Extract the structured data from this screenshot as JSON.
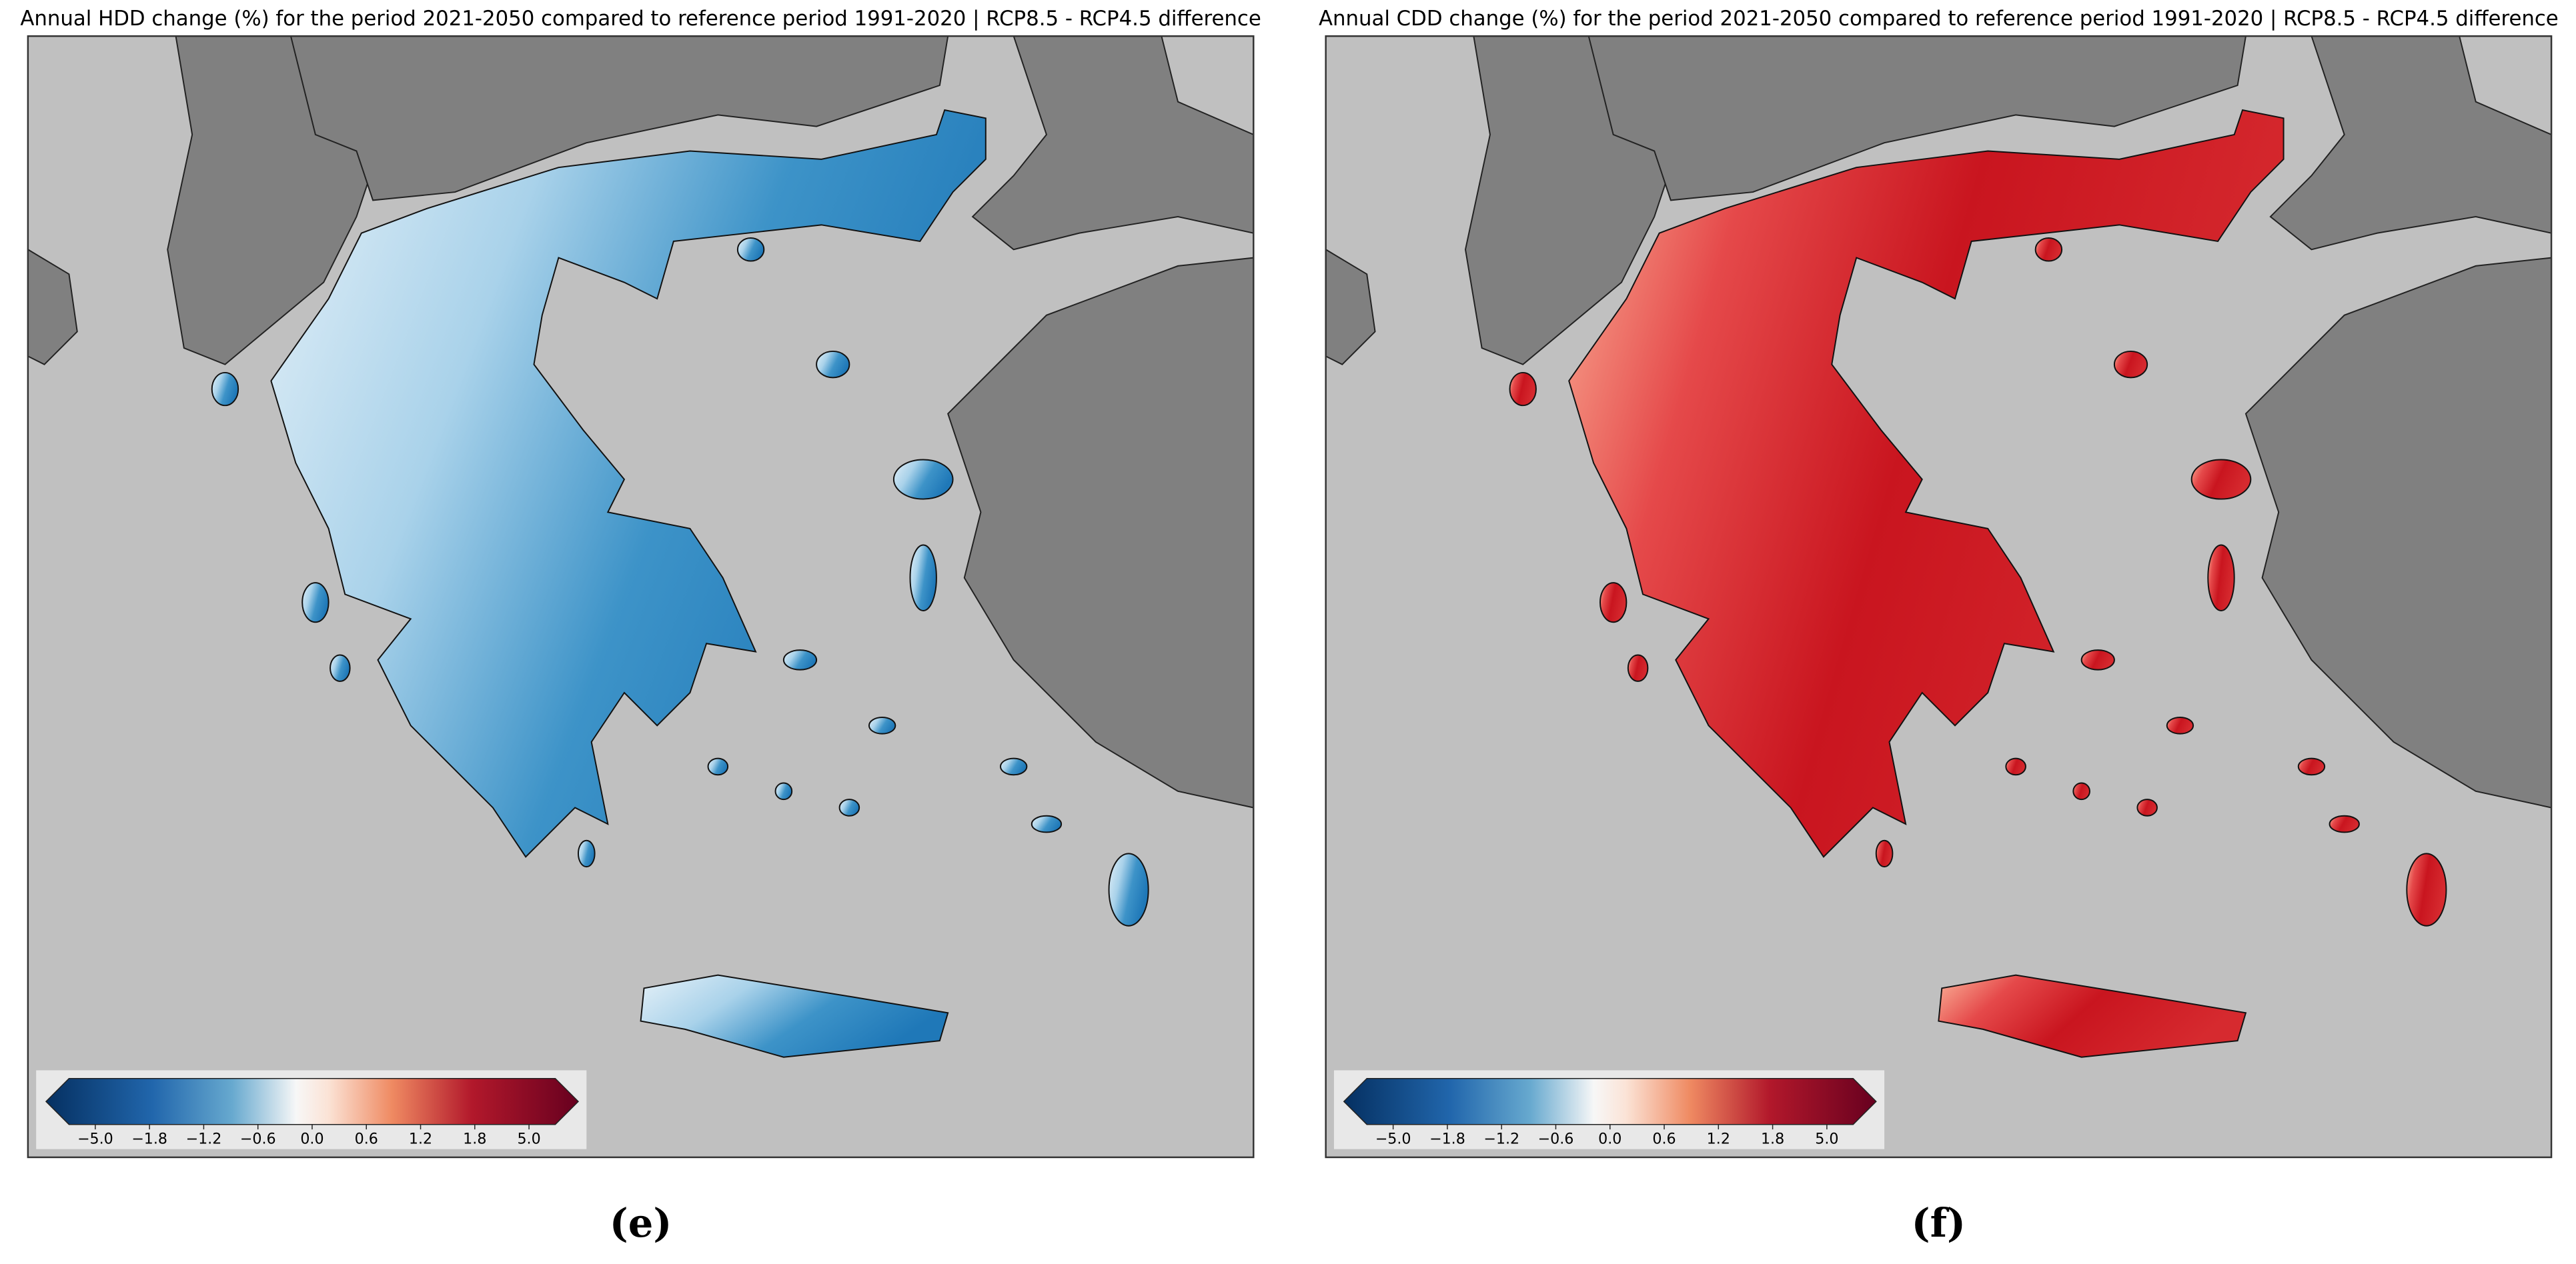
{
  "panels": [
    {
      "title": "Annual HDD change (%) for the period 2021-2050 compared to reference period 1991-2020 | RCP8.5 - RCP4.5 difference",
      "colorbar_ticks": [
        "−5.0",
        "−1.8",
        "−1.2",
        "−0.6",
        "0.0",
        "0.6",
        "1.2",
        "1.8",
        "5.0"
      ],
      "label": "(e)"
    },
    {
      "title": "Annual CDD change (%) for the period 2021-2050 compared to reference period 1991-2020 | RCP8.5 - RCP4.5 difference",
      "colorbar_ticks": [
        "−5.0",
        "−1.8",
        "−1.2",
        "−0.6",
        "0.0",
        "0.6",
        "1.2",
        "1.8",
        "5.0"
      ],
      "label": "(f)"
    }
  ]
}
